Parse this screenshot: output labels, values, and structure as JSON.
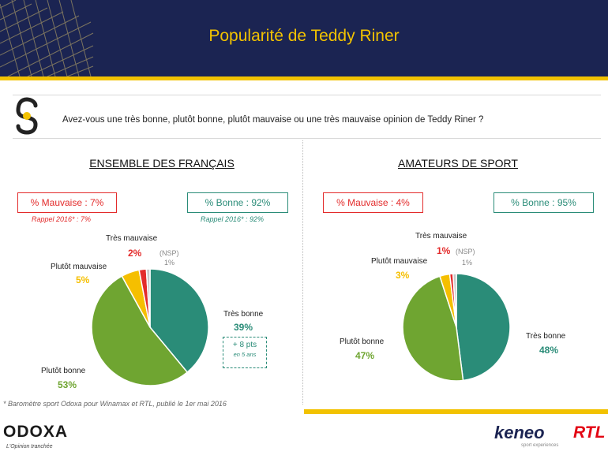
{
  "header": {
    "title": "Popularité de Teddy Riner"
  },
  "question": "Avez-vous une très bonne, plutôt bonne, plutôt mauvaise ou une très mauvaise opinion de Teddy Riner ?",
  "colors": {
    "tres_bonne": "#2a8c78",
    "plutot_bonne": "#6fa531",
    "plutot_mauvaise": "#f5bf00",
    "tres_mauvaise": "#e32b2b",
    "nsp": "#c8c8c8",
    "navy": "#1b2452",
    "gold": "#f2c200"
  },
  "left": {
    "title": "ENSEMBLE DES FRANÇAIS",
    "mauvaise_box": "% Mauvaise : 7%",
    "bonne_box": "% Bonne : 92%",
    "rappel_mauvaise": "Rappel 2016* : 7%",
    "rappel_bonne": "Rappel 2016* : 92%",
    "labels": {
      "tres_mauvaise": "Très mauvaise",
      "tres_mauvaise_val": "2%",
      "nsp": "(NSP)",
      "nsp_val": "1%",
      "plutot_mauvaise": "Plutôt mauvaise",
      "plutot_mauvaise_val": "5%",
      "tres_bonne": "Très bonne",
      "tres_bonne_val": "39%",
      "plutot_bonne": "Plutôt bonne",
      "plutot_bonne_val": "53%"
    },
    "evolution_a": "+ 8 pts",
    "evolution_b": "en 5 ans"
  },
  "right": {
    "title": "AMATEURS DE SPORT",
    "mauvaise_box": "% Mauvaise : 4%",
    "bonne_box": "% Bonne : 95%",
    "labels": {
      "tres_mauvaise": "Très mauvaise",
      "tres_mauvaise_val": "1%",
      "nsp": "(NSP)",
      "nsp_val": "1%",
      "plutot_mauvaise": "Plutôt mauvaise",
      "plutot_mauvaise_val": "3%",
      "tres_bonne": "Très bonne",
      "tres_bonne_val": "48%",
      "plutot_bonne": "Plutôt bonne",
      "plutot_bonne_val": "47%"
    }
  },
  "chart_data": [
    {
      "type": "pie",
      "title": "ENSEMBLE DES FRANÇAIS",
      "categories": [
        "Très bonne",
        "Plutôt bonne",
        "Plutôt mauvaise",
        "Très mauvaise",
        "(NSP)"
      ],
      "values": [
        39,
        53,
        5,
        2,
        1
      ]
    },
    {
      "type": "pie",
      "title": "AMATEURS DE SPORT",
      "categories": [
        "Très bonne",
        "Plutôt bonne",
        "Plutôt mauvaise",
        "Très mauvaise",
        "(NSP)"
      ],
      "values": [
        48,
        47,
        3,
        1,
        1
      ]
    }
  ],
  "footnote": "* Baromètre sport Odoxa pour Winamax et RTL, publié le 1er mai 2016",
  "footer": {
    "odoxa": "ODOXA",
    "odoxa_tagline": "L'Opinion tranchée",
    "keneo": "keneo",
    "keneo_tagline": "sport experiences",
    "rtl": "RTL"
  }
}
